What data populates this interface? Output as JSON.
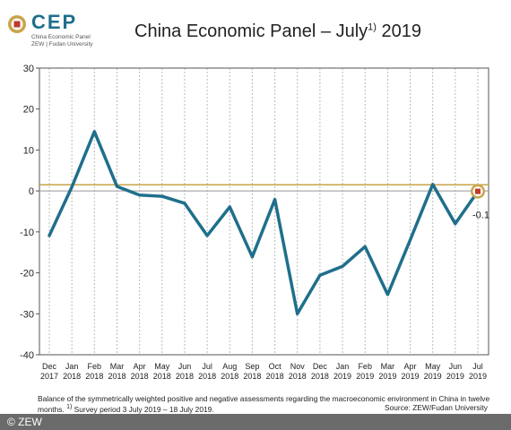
{
  "colors": {
    "line": "#1f6f8b",
    "reference_line": "#c8a54a",
    "zero_line": "#999999",
    "grid": "#bbbbbb",
    "marker_outer": "#c8a54a",
    "marker_inner": "#c0392b"
  },
  "logo": {
    "name": "CEP",
    "sub1": "China Economic Panel",
    "sub2": "ZEW | Fudan University"
  },
  "header": {
    "title_main": "China Economic Panel – July",
    "title_sup": "1)",
    "title_year": " 2019"
  },
  "chart_data": {
    "type": "line",
    "title": "China Economic Panel – July 2019",
    "categories": [
      "Dec 2017",
      "Jan 2018",
      "Feb 2018",
      "Mar 2018",
      "Apr 2018",
      "May 2018",
      "Jun 2018",
      "Jul 2018",
      "Aug 2018",
      "Sep 2018",
      "Oct 2018",
      "Nov 2018",
      "Dec 2018",
      "Jan 2019",
      "Feb 2019",
      "Mar 2019",
      "Apr 2019",
      "May 2019",
      "Jun 2019",
      "Jul 2019"
    ],
    "tick_month": [
      "Dec",
      "Jan",
      "Feb",
      "Mar",
      "Apr",
      "May",
      "Jun",
      "Jul",
      "Aug",
      "Sep",
      "Oct",
      "Nov",
      "Dec",
      "Jan",
      "Feb",
      "Mar",
      "Apr",
      "May",
      "Jun",
      "Jul"
    ],
    "tick_year": [
      "2017",
      "2018",
      "2018",
      "2018",
      "2018",
      "2018",
      "2018",
      "2018",
      "2018",
      "2018",
      "2018",
      "2018",
      "2018",
      "2019",
      "2019",
      "2019",
      "2019",
      "2019",
      "2019",
      "2019"
    ],
    "series": [
      {
        "values": [
          -10.9,
          1.0,
          14.5,
          1.1,
          -1.0,
          -1.3,
          -3.0,
          -10.9,
          -3.9,
          -16.1,
          -2.1,
          -30.0,
          -20.6,
          -18.4,
          -13.6,
          -25.3,
          -12.0,
          1.6,
          -8.0,
          -0.1
        ]
      }
    ],
    "yticks": [
      30,
      20,
      10,
      0,
      -10,
      -20,
      -30,
      -40
    ],
    "ylim": [
      -40,
      30
    ],
    "reference_value": 1.5,
    "last_label": "-0.1",
    "grid": "vertical dotted"
  },
  "footer": {
    "note": "Balance of the symmetrically weighted positive and negative assessments regarding the macroeconomic environment in China in twelve months.",
    "note_sup": "1)",
    "note_period": " Survey period 3 July 2019 – 18 July 2019.",
    "source": "Source: ZEW/Fudan University",
    "copyright": "© ZEW"
  }
}
